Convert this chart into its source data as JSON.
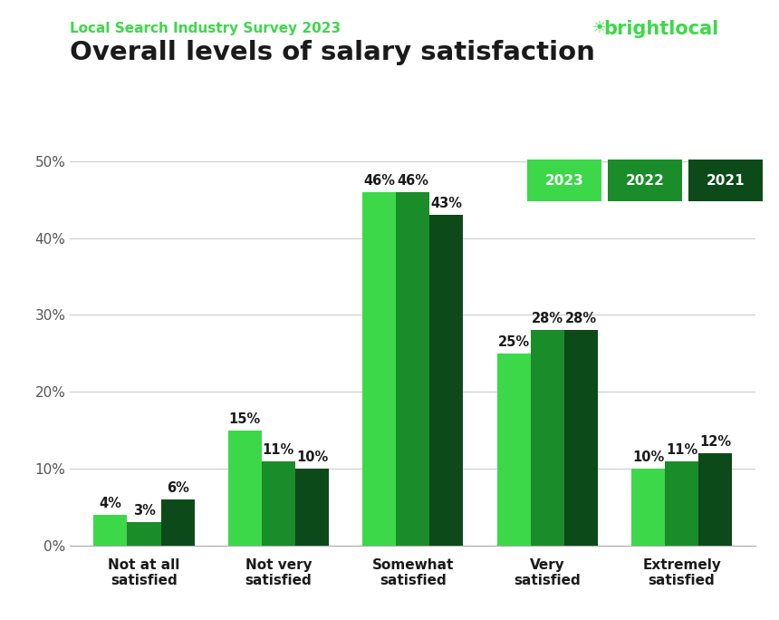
{
  "title": "Overall levels of salary satisfaction",
  "subtitle": "Local Search Industry Survey 2023",
  "categories": [
    "Not at all\nsatisfied",
    "Not very\nsatisfied",
    "Somewhat\nsatisfied",
    "Very\nsatisfied",
    "Extremely\nsatisfied"
  ],
  "years": [
    "2023",
    "2022",
    "2021"
  ],
  "values": {
    "2023": [
      4,
      15,
      46,
      25,
      10
    ],
    "2022": [
      3,
      11,
      46,
      28,
      11
    ],
    "2021": [
      6,
      10,
      43,
      28,
      12
    ]
  },
  "colors": {
    "2023": "#3DD84A",
    "2022": "#1A8C2A",
    "2021": "#0D4A1A"
  },
  "ylim": [
    0,
    50
  ],
  "yticks": [
    0,
    10,
    20,
    30,
    40,
    50
  ],
  "bar_width": 0.25,
  "background_color": "#ffffff",
  "subtitle_color": "#3DD84A",
  "title_color": "#1a1a1a",
  "brightlocal_color": "#3DD84A",
  "annotation_fontsize": 10.5,
  "axis_fontsize": 11,
  "title_fontsize": 21,
  "subtitle_fontsize": 11
}
